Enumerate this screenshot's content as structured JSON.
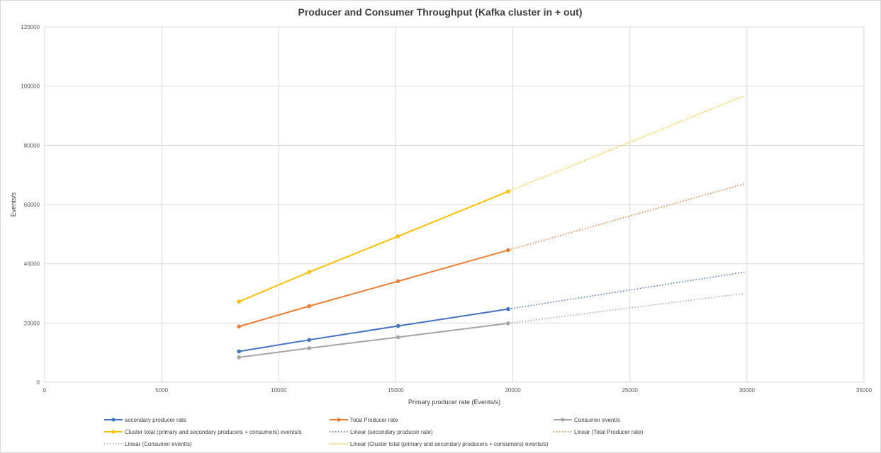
{
  "chart_data": {
    "type": "line",
    "title": "Producer and Consumer Throughput (Kafka cluster in + out)",
    "xlabel": "Primary producer rate (Events/s)",
    "ylabel": "Events/s",
    "xlim": [
      0,
      35000
    ],
    "ylim": [
      0,
      120000
    ],
    "x_ticks": [
      "0",
      "5000",
      "10000",
      "15000",
      "20000",
      "25000",
      "30000",
      "35000"
    ],
    "y_ticks": [
      "0",
      "20000",
      "40000",
      "60000",
      "80000",
      "100000",
      "120000"
    ],
    "grid": true,
    "legend_position": "bottom",
    "series": [
      {
        "name": "secondary producer rate",
        "color": "#4472c4",
        "style": "solid-markers",
        "x": [
          8300,
          11300,
          15100,
          19800
        ],
        "y": [
          10400,
          14300,
          19000,
          24700
        ]
      },
      {
        "name": "Total Producer rate",
        "color": "#ed7d31",
        "style": "solid-markers",
        "x": [
          8300,
          11300,
          15100,
          19800
        ],
        "y": [
          18800,
          25700,
          34100,
          44600
        ]
      },
      {
        "name": "Consumer event/s",
        "color": "#a5a5a5",
        "style": "solid-markers",
        "x": [
          8300,
          11300,
          15100,
          19800
        ],
        "y": [
          8400,
          11500,
          15200,
          19900
        ]
      },
      {
        "name": "Cluster total (primary and secondary producers + consumers) events/s",
        "color": "#ffc000",
        "style": "solid-markers",
        "x": [
          8300,
          11300,
          15100,
          19800
        ],
        "y": [
          27200,
          37200,
          49300,
          64400
        ]
      },
      {
        "name": "Linear (secondary producer rate)",
        "color": "#4472c4",
        "style": "dotted",
        "x": [
          19800,
          29900
        ],
        "y": [
          24700,
          37200
        ]
      },
      {
        "name": "Linear (Total Producer rate)",
        "color": "#ed7d31",
        "style": "dotted",
        "x": [
          19800,
          29900
        ],
        "y": [
          44600,
          67000
        ]
      },
      {
        "name": "Linear (Consumer event/s)",
        "color": "#a5a5a5",
        "style": "dotted",
        "x": [
          19800,
          29900
        ],
        "y": [
          19900,
          30000
        ]
      },
      {
        "name": "Linear (Cluster total (primary and secondary producers + consumers) events/s)",
        "color": "#ffc000",
        "style": "dotted",
        "x": [
          19800,
          29900
        ],
        "y": [
          64400,
          96800
        ]
      }
    ]
  }
}
